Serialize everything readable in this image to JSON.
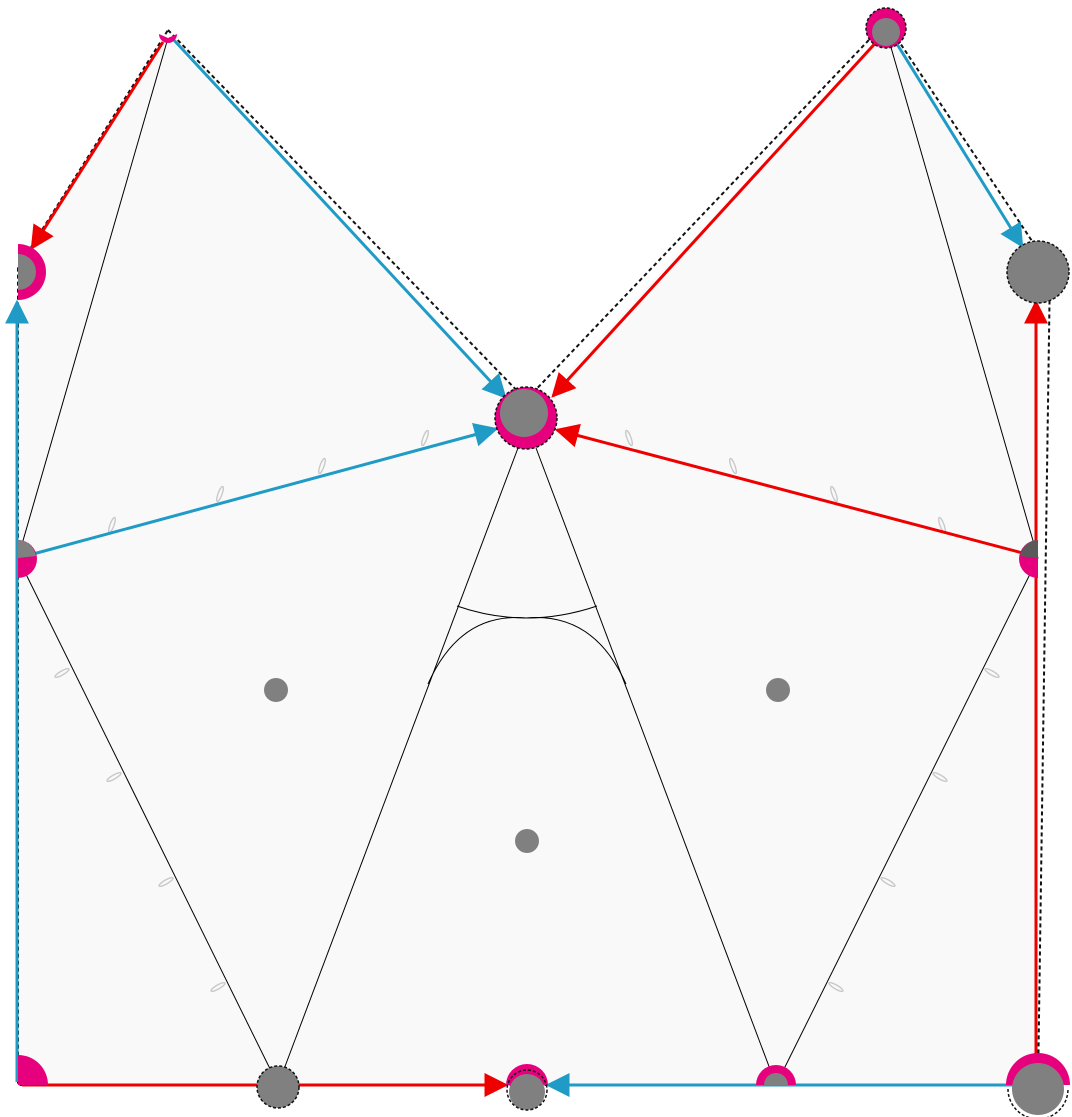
{
  "colors": {
    "face_fill": "#f9f9f9",
    "mesh_edge": "#000000",
    "outline_dash": "#111111",
    "vertex": "#808080",
    "angle_marker": "#e6007e",
    "arrow_red": "#ee0000",
    "arrow_blue": "#1f9bc6",
    "tick_mark": "#c8c8c8"
  },
  "icons": {
    "vertex": "filled-gray-circle",
    "angle_marker": "magenta-arc-wedge",
    "arrow": "filled-triangle-arrowhead",
    "tick": "small-gray-ellipse"
  }
}
